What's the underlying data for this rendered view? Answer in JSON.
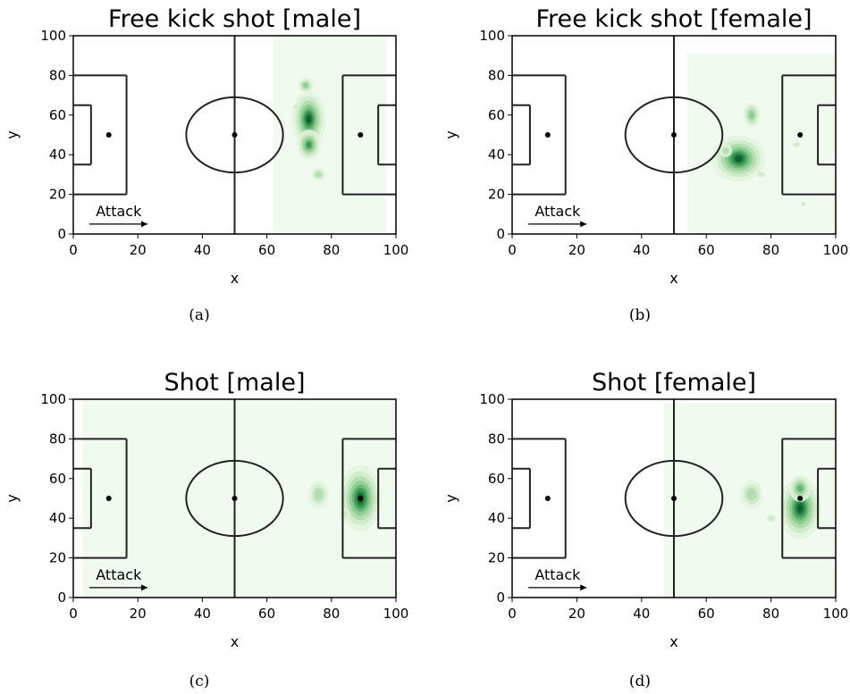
{
  "chart_data": [
    {
      "type": "heatmap",
      "panel": "(a)",
      "title": "Free kick shot [male]",
      "xlabel": "x",
      "ylabel": "y",
      "xlim": [
        0,
        100
      ],
      "ylim": [
        0,
        100
      ],
      "xticks": [
        "0",
        "20",
        "40",
        "60",
        "80",
        "100"
      ],
      "yticks": [
        "0",
        "20",
        "40",
        "60",
        "80",
        "100"
      ],
      "annotation": "Attack",
      "background_region": {
        "x": [
          62,
          97
        ],
        "y": [
          0,
          100
        ]
      },
      "density_peaks": [
        {
          "x": 73,
          "y": 58,
          "sx": 2.0,
          "sy": 5.5,
          "w": 1.0
        },
        {
          "x": 73,
          "y": 45,
          "sx": 2.2,
          "sy": 4.5,
          "w": 0.75
        },
        {
          "x": 72,
          "y": 75,
          "sx": 2.2,
          "sy": 3.5,
          "w": 0.45
        },
        {
          "x": 76,
          "y": 30,
          "sx": 2.8,
          "sy": 4.0,
          "w": 0.35
        },
        {
          "x": 69,
          "y": 64,
          "sx": 1.8,
          "sy": 3.0,
          "w": 0.3
        }
      ]
    },
    {
      "type": "heatmap",
      "panel": "(b)",
      "title": "Free kick shot [female]",
      "xlabel": "x",
      "ylabel": "y",
      "xlim": [
        0,
        100
      ],
      "ylim": [
        0,
        100
      ],
      "xticks": [
        "0",
        "20",
        "40",
        "60",
        "80",
        "100"
      ],
      "yticks": [
        "0",
        "20",
        "40",
        "60",
        "80",
        "100"
      ],
      "annotation": "Attack",
      "background_region": {
        "x": [
          54,
          100
        ],
        "y": [
          0,
          91
        ]
      },
      "density_peaks": [
        {
          "x": 70,
          "y": 38,
          "sx": 3.2,
          "sy": 4.5,
          "w": 1.0
        },
        {
          "x": 74,
          "y": 60,
          "sx": 2.5,
          "sy": 6.0,
          "w": 0.5
        },
        {
          "x": 66,
          "y": 42,
          "sx": 2.5,
          "sy": 4.0,
          "w": 0.4
        },
        {
          "x": 77,
          "y": 30,
          "sx": 3.0,
          "sy": 3.0,
          "w": 0.3
        },
        {
          "x": 88,
          "y": 45,
          "sx": 2.5,
          "sy": 3.0,
          "w": 0.2
        },
        {
          "x": 90,
          "y": 15,
          "sx": 1.5,
          "sy": 2.0,
          "w": 0.15
        }
      ]
    },
    {
      "type": "heatmap",
      "panel": "(c)",
      "title": "Shot [male]",
      "xlabel": "x",
      "ylabel": "y",
      "xlim": [
        0,
        100
      ],
      "ylim": [
        0,
        100
      ],
      "xticks": [
        "0",
        "20",
        "40",
        "60",
        "80",
        "100"
      ],
      "yticks": [
        "0",
        "20",
        "40",
        "60",
        "80",
        "100"
      ],
      "annotation": "Attack",
      "background_region": {
        "x": [
          3,
          100
        ],
        "y": [
          0,
          100
        ]
      },
      "density_peaks": [
        {
          "x": 89,
          "y": 50,
          "sx": 2.5,
          "sy": 6.5,
          "w": 1.0
        },
        {
          "x": 76,
          "y": 52,
          "sx": 4.0,
          "sy": 9.0,
          "w": 0.4
        },
        {
          "x": 84,
          "y": 42,
          "sx": 3.0,
          "sy": 5.0,
          "w": 0.3
        }
      ]
    },
    {
      "type": "heatmap",
      "panel": "(d)",
      "title": "Shot [female]",
      "xlabel": "x",
      "ylabel": "y",
      "xlim": [
        0,
        100
      ],
      "ylim": [
        0,
        100
      ],
      "xticks": [
        "0",
        "20",
        "40",
        "60",
        "80",
        "100"
      ],
      "yticks": [
        "0",
        "20",
        "40",
        "60",
        "80",
        "100"
      ],
      "annotation": "Attack",
      "background_region": {
        "x": [
          47,
          100
        ],
        "y": [
          0,
          98
        ]
      },
      "density_peaks": [
        {
          "x": 89,
          "y": 45,
          "sx": 2.5,
          "sy": 6.0,
          "w": 1.0
        },
        {
          "x": 89,
          "y": 55,
          "sx": 2.5,
          "sy": 5.0,
          "w": 0.6
        },
        {
          "x": 74,
          "y": 52,
          "sx": 4.5,
          "sy": 9.0,
          "w": 0.35
        },
        {
          "x": 80,
          "y": 40,
          "sx": 3.0,
          "sy": 4.0,
          "w": 0.3
        }
      ]
    }
  ]
}
